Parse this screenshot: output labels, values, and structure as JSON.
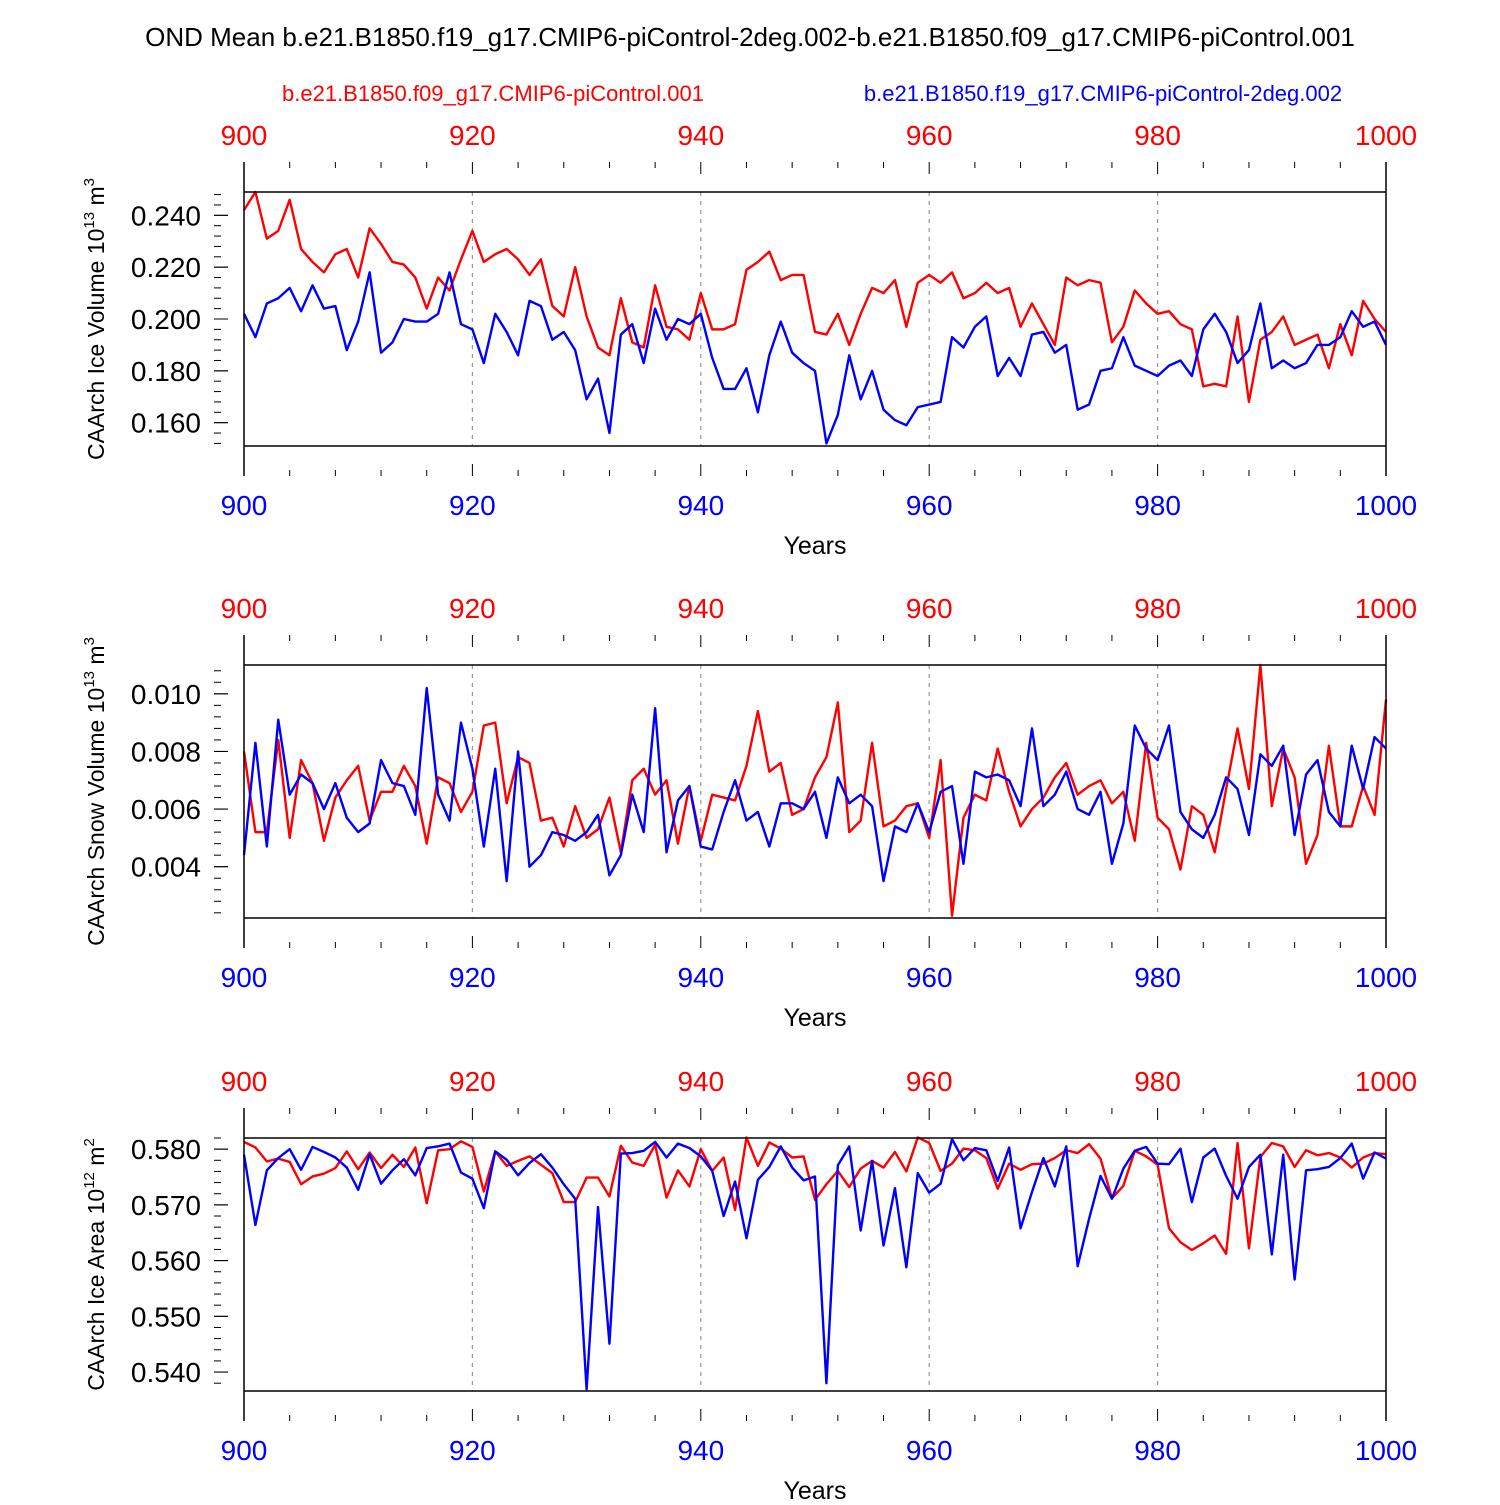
{
  "title": "OND Mean b.e21.B1850.f19_g17.CMIP6-piControl-2deg.002-b.e21.B1850.f09_g17.CMIP6-piControl.001",
  "legend": {
    "red_label": "b.e21.B1850.f09_g17.CMIP6-piControl.001",
    "blue_label": "b.e21.B1850.f19_g17.CMIP6-piControl-2deg.002"
  },
  "colors": {
    "red": "#ff0000",
    "blue": "#0000ff",
    "axis": "#000000",
    "grid": "#999999"
  },
  "chart_data": [
    {
      "type": "line",
      "ylabel": "CAArch Ice Volume",
      "yunit_prefix": "10",
      "yunit_exp": "13",
      "yunit_suffix": " m",
      "yunit_suffix_exp": "3",
      "xlabel": "Years",
      "xlim": [
        900,
        1000
      ],
      "ylim": [
        0.151,
        0.249
      ],
      "yticks": [
        0.16,
        0.18,
        0.2,
        0.22,
        0.24
      ],
      "ytick_labels": [
        "0.160",
        "0.180",
        "0.200",
        "0.220",
        "0.240"
      ],
      "yminor_step": 0.004,
      "xticks": [
        900,
        920,
        940,
        960,
        980,
        1000
      ],
      "xtick_labels": [
        "900",
        "920",
        "940",
        "960",
        "980",
        "1000"
      ],
      "x_start": 900,
      "series": [
        {
          "name": "b.e21.B1850.f09_g17.CMIP6-piControl.001",
          "color": "red",
          "values": [
            0.242,
            0.249,
            0.231,
            0.234,
            0.246,
            0.227,
            0.222,
            0.218,
            0.225,
            0.227,
            0.216,
            0.235,
            0.229,
            0.222,
            0.221,
            0.216,
            0.204,
            0.216,
            0.211,
            0.223,
            0.234,
            0.222,
            0.225,
            0.227,
            0.223,
            0.217,
            0.223,
            0.205,
            0.201,
            0.22,
            0.201,
            0.189,
            0.186,
            0.208,
            0.191,
            0.189,
            0.213,
            0.197,
            0.196,
            0.192,
            0.21,
            0.196,
            0.196,
            0.198,
            0.219,
            0.222,
            0.226,
            0.215,
            0.217,
            0.217,
            0.195,
            0.194,
            0.202,
            0.19,
            0.202,
            0.212,
            0.21,
            0.215,
            0.197,
            0.214,
            0.217,
            0.214,
            0.218,
            0.208,
            0.21,
            0.214,
            0.21,
            0.212,
            0.197,
            0.206,
            0.198,
            0.19,
            0.216,
            0.213,
            0.215,
            0.214,
            0.191,
            0.197,
            0.211,
            0.206,
            0.202,
            0.203,
            0.198,
            0.196,
            0.174,
            0.175,
            0.174,
            0.201,
            0.168,
            0.192,
            0.195,
            0.201,
            0.19,
            0.192,
            0.194,
            0.181,
            0.198,
            0.186,
            0.207,
            0.2,
            0.195
          ]
        },
        {
          "name": "b.e21.B1850.f19_g17.CMIP6-piControl-2deg.002",
          "color": "blue",
          "values": [
            0.202,
            0.193,
            0.206,
            0.208,
            0.212,
            0.203,
            0.213,
            0.204,
            0.205,
            0.188,
            0.199,
            0.218,
            0.187,
            0.191,
            0.2,
            0.199,
            0.199,
            0.202,
            0.218,
            0.198,
            0.196,
            0.183,
            0.202,
            0.195,
            0.186,
            0.207,
            0.205,
            0.192,
            0.195,
            0.188,
            0.169,
            0.177,
            0.156,
            0.194,
            0.198,
            0.183,
            0.204,
            0.192,
            0.2,
            0.198,
            0.202,
            0.185,
            0.173,
            0.173,
            0.181,
            0.164,
            0.186,
            0.199,
            0.187,
            0.183,
            0.18,
            0.152,
            0.163,
            0.186,
            0.169,
            0.18,
            0.165,
            0.161,
            0.159,
            0.166,
            0.167,
            0.168,
            0.193,
            0.189,
            0.197,
            0.201,
            0.178,
            0.185,
            0.178,
            0.194,
            0.195,
            0.187,
            0.19,
            0.165,
            0.167,
            0.18,
            0.181,
            0.193,
            0.182,
            0.18,
            0.178,
            0.182,
            0.184,
            0.178,
            0.196,
            0.202,
            0.195,
            0.183,
            0.188,
            0.206,
            0.181,
            0.184,
            0.181,
            0.183,
            0.19,
            0.19,
            0.193,
            0.203,
            0.197,
            0.199,
            0.19
          ]
        }
      ]
    },
    {
      "type": "line",
      "ylabel": "CAArch Snow Volume",
      "yunit_prefix": "10",
      "yunit_exp": "13",
      "yunit_suffix": " m",
      "yunit_suffix_exp": "3",
      "xlabel": "Years",
      "xlim": [
        900,
        1000
      ],
      "ylim": [
        0.00222,
        0.011
      ],
      "yticks": [
        0.004,
        0.006,
        0.008,
        0.01
      ],
      "ytick_labels": [
        "0.004",
        "0.006",
        "0.008",
        "0.010"
      ],
      "yminor_step": 0.0004,
      "xticks": [
        900,
        920,
        940,
        960,
        980,
        1000
      ],
      "xtick_labels": [
        "900",
        "920",
        "940",
        "960",
        "980",
        "1000"
      ],
      "x_start": 900,
      "series": [
        {
          "name": "b.e21.B1850.f09_g17.CMIP6-piControl.001",
          "color": "red",
          "values": [
            0.008,
            0.0052,
            0.0052,
            0.0084,
            0.005,
            0.0077,
            0.0069,
            0.0049,
            0.0064,
            0.007,
            0.0075,
            0.0056,
            0.0066,
            0.0066,
            0.0075,
            0.0068,
            0.0048,
            0.0071,
            0.0069,
            0.0059,
            0.0066,
            0.0089,
            0.009,
            0.0062,
            0.0078,
            0.0076,
            0.0056,
            0.0057,
            0.0047,
            0.0061,
            0.005,
            0.0053,
            0.0064,
            0.0045,
            0.007,
            0.0074,
            0.0065,
            0.007,
            0.0048,
            0.0068,
            0.0049,
            0.0065,
            0.0064,
            0.0063,
            0.0075,
            0.0094,
            0.0073,
            0.0076,
            0.0058,
            0.006,
            0.0071,
            0.0078,
            0.0097,
            0.0052,
            0.0056,
            0.0083,
            0.0054,
            0.0056,
            0.0061,
            0.0062,
            0.005,
            0.0077,
            0.0023,
            0.0057,
            0.0065,
            0.0063,
            0.0081,
            0.0066,
            0.0054,
            0.006,
            0.0064,
            0.0071,
            0.0076,
            0.0065,
            0.0068,
            0.007,
            0.0062,
            0.0066,
            0.0049,
            0.0083,
            0.0057,
            0.0053,
            0.0039,
            0.0061,
            0.0058,
            0.0045,
            0.0067,
            0.0088,
            0.0067,
            0.011,
            0.0061,
            0.0081,
            0.0071,
            0.0041,
            0.0051,
            0.0082,
            0.0054,
            0.0054,
            0.0068,
            0.0058,
            0.0098
          ]
        },
        {
          "name": "b.e21.B1850.f19_g17.CMIP6-piControl-2deg.002",
          "color": "blue",
          "values": [
            0.0044,
            0.0083,
            0.0047,
            0.0091,
            0.0065,
            0.0072,
            0.0069,
            0.006,
            0.0069,
            0.0057,
            0.0052,
            0.0055,
            0.0077,
            0.0069,
            0.0068,
            0.0058,
            0.0102,
            0.0065,
            0.0056,
            0.009,
            0.0074,
            0.0047,
            0.0074,
            0.0035,
            0.008,
            0.004,
            0.0044,
            0.0052,
            0.0051,
            0.0049,
            0.0052,
            0.0058,
            0.0037,
            0.0044,
            0.0065,
            0.0052,
            0.0095,
            0.0045,
            0.0063,
            0.0068,
            0.0047,
            0.0046,
            0.0059,
            0.007,
            0.0056,
            0.0059,
            0.0047,
            0.0062,
            0.0062,
            0.006,
            0.0066,
            0.005,
            0.0071,
            0.0062,
            0.0065,
            0.0061,
            0.0035,
            0.0054,
            0.0052,
            0.0062,
            0.0052,
            0.0066,
            0.0068,
            0.0041,
            0.0073,
            0.0071,
            0.0072,
            0.007,
            0.0061,
            0.0088,
            0.0061,
            0.0065,
            0.0073,
            0.006,
            0.0058,
            0.0066,
            0.0041,
            0.0055,
            0.0089,
            0.0081,
            0.0077,
            0.0089,
            0.0059,
            0.0053,
            0.005,
            0.0058,
            0.0071,
            0.0067,
            0.0051,
            0.0079,
            0.0075,
            0.0082,
            0.0051,
            0.0072,
            0.0077,
            0.0059,
            0.0054,
            0.0082,
            0.0067,
            0.0085,
            0.0081
          ]
        }
      ]
    },
    {
      "type": "line",
      "ylabel": "CAArch Ice Area",
      "yunit_prefix": "10",
      "yunit_exp": "12",
      "yunit_suffix": " m",
      "yunit_suffix_exp": "2",
      "xlabel": "Years",
      "xlim": [
        900,
        1000
      ],
      "ylim": [
        0.5366,
        0.582
      ],
      "yticks": [
        0.54,
        0.55,
        0.56,
        0.57,
        0.58
      ],
      "ytick_labels": [
        "0.540",
        "0.550",
        "0.560",
        "0.570",
        "0.580"
      ],
      "yminor_step": 0.002,
      "xticks": [
        900,
        920,
        940,
        960,
        980,
        1000
      ],
      "xtick_labels": [
        "900",
        "920",
        "940",
        "960",
        "980",
        "1000"
      ],
      "x_start": 900,
      "series": [
        {
          "name": "b.e21.B1850.f09_g17.CMIP6-piControl.001",
          "color": "red",
          "values": [
            0.5813,
            0.5803,
            0.5778,
            0.5783,
            0.5777,
            0.5737,
            0.5751,
            0.5756,
            0.5766,
            0.5796,
            0.5764,
            0.5794,
            0.5766,
            0.579,
            0.5768,
            0.5803,
            0.5703,
            0.5798,
            0.58,
            0.5814,
            0.5804,
            0.5724,
            0.5796,
            0.577,
            0.5779,
            0.5787,
            0.5772,
            0.5757,
            0.5705,
            0.5705,
            0.5749,
            0.5749,
            0.5715,
            0.5806,
            0.5776,
            0.577,
            0.5808,
            0.5713,
            0.5762,
            0.5733,
            0.58,
            0.5761,
            0.5785,
            0.5691,
            0.5821,
            0.577,
            0.5812,
            0.5801,
            0.5785,
            0.5787,
            0.5709,
            0.5737,
            0.5761,
            0.5732,
            0.5765,
            0.5779,
            0.5767,
            0.5795,
            0.576,
            0.5821,
            0.5811,
            0.5761,
            0.5774,
            0.5801,
            0.5798,
            0.5784,
            0.5729,
            0.5774,
            0.5763,
            0.5773,
            0.5774,
            0.5784,
            0.5798,
            0.5793,
            0.5809,
            0.5783,
            0.5712,
            0.5734,
            0.5797,
            0.5787,
            0.5772,
            0.5658,
            0.5633,
            0.5619,
            0.5631,
            0.5645,
            0.5612,
            0.5811,
            0.5622,
            0.5786,
            0.5811,
            0.5805,
            0.5768,
            0.5798,
            0.5789,
            0.5793,
            0.5785,
            0.5767,
            0.5785,
            0.5793,
            0.5791
          ]
        },
        {
          "name": "b.e21.B1850.f19_g17.CMIP6-piControl-2deg.002",
          "color": "blue",
          "values": [
            0.579,
            0.5664,
            0.5762,
            0.5784,
            0.58,
            0.5763,
            0.5804,
            0.5795,
            0.5785,
            0.5767,
            0.5727,
            0.5791,
            0.5738,
            0.5762,
            0.5782,
            0.5753,
            0.5802,
            0.5805,
            0.581,
            0.5758,
            0.5747,
            0.5694,
            0.5796,
            0.5781,
            0.5753,
            0.5775,
            0.5791,
            0.5767,
            0.5737,
            0.5711,
            0.5369,
            0.5696,
            0.5451,
            0.5792,
            0.5793,
            0.5797,
            0.5813,
            0.5785,
            0.581,
            0.5802,
            0.5787,
            0.5761,
            0.568,
            0.5742,
            0.564,
            0.5745,
            0.5768,
            0.5805,
            0.5767,
            0.5744,
            0.5751,
            0.538,
            0.5771,
            0.5805,
            0.5654,
            0.5779,
            0.5627,
            0.573,
            0.5588,
            0.5757,
            0.5722,
            0.5738,
            0.5818,
            0.578,
            0.5802,
            0.5798,
            0.5743,
            0.5803,
            0.5658,
            0.5723,
            0.5784,
            0.5733,
            0.5805,
            0.559,
            0.5675,
            0.5752,
            0.5711,
            0.5765,
            0.5797,
            0.5804,
            0.5774,
            0.5773,
            0.5801,
            0.5705,
            0.5785,
            0.5801,
            0.5752,
            0.5711,
            0.5768,
            0.579,
            0.5611,
            0.579,
            0.5566,
            0.5762,
            0.5764,
            0.5768,
            0.5784,
            0.581,
            0.5747,
            0.5794,
            0.5783
          ]
        }
      ]
    }
  ]
}
